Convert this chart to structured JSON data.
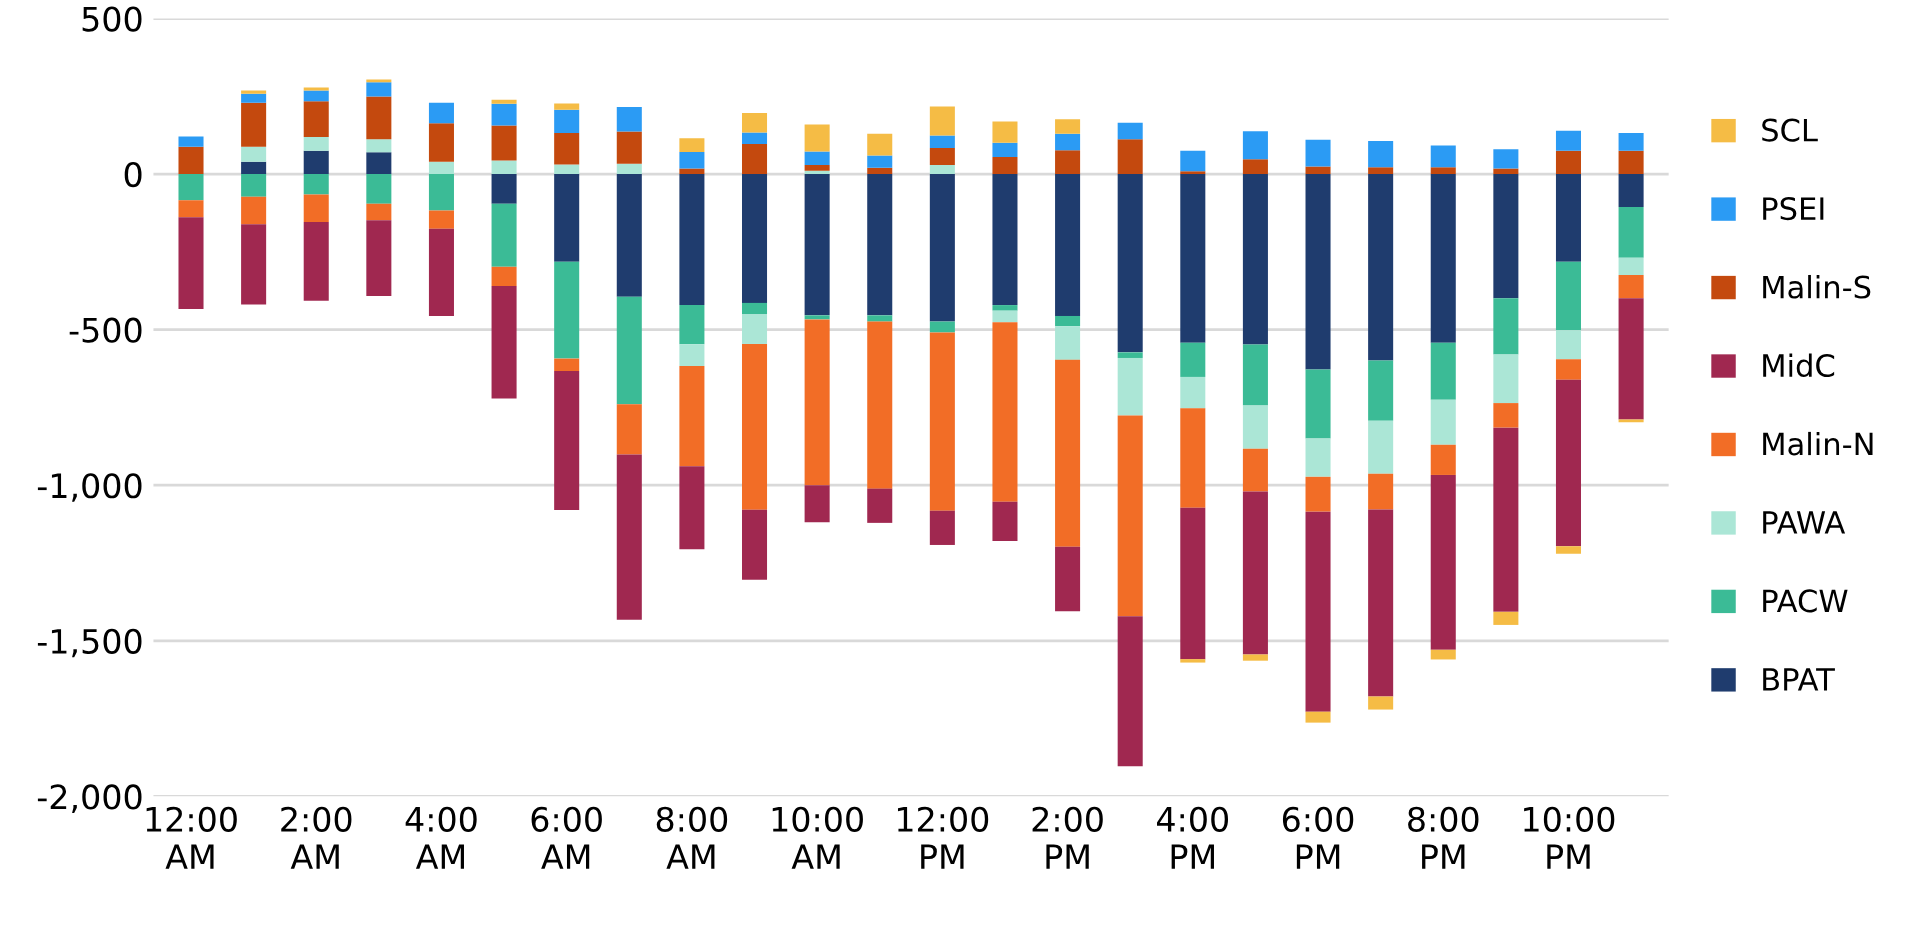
{
  "chart_data": {
    "type": "bar",
    "stacked": true,
    "categories": [
      "12:00 AM",
      null,
      "2:00 AM",
      null,
      "4:00 AM",
      null,
      "6:00 AM",
      null,
      "8:00 AM",
      null,
      "10:00 AM",
      null,
      "12:00 PM",
      null,
      "2:00 PM",
      null,
      "4:00 PM",
      null,
      "6:00 PM",
      null,
      "8:00 PM",
      null,
      "10:00 PM",
      null
    ],
    "series": [
      {
        "name": "BPAT",
        "color": "#1f3c6e",
        "values": [
          0,
          40,
          75,
          70,
          0,
          -95,
          -282,
          -394,
          -421,
          -414,
          -454,
          -454,
          -474,
          -421,
          -456,
          -573,
          -542,
          -548,
          -628,
          -599,
          -542,
          -399,
          -282,
          -106
        ]
      },
      {
        "name": "PACW",
        "color": "#3bbb96",
        "values": [
          -84,
          -73,
          -66,
          -95,
          -117,
          -203,
          -311,
          -346,
          -126,
          -37,
          -13,
          -20,
          -35,
          -18,
          -33,
          -18,
          -110,
          -196,
          -222,
          -194,
          -183,
          -181,
          -220,
          -163
        ]
      },
      {
        "name": "PAWA",
        "color": "#abe6d6",
        "values": [
          null,
          48,
          44,
          42,
          40,
          44,
          31,
          33,
          -70,
          -95,
          11,
          0,
          29,
          -37,
          -108,
          -185,
          -101,
          -139,
          -123,
          -170,
          -145,
          -156,
          -93,
          -55
        ]
      },
      {
        "name": "Malin-N",
        "color": "#f26d26",
        "values": [
          -55,
          -88,
          -88,
          -53,
          -59,
          -62,
          -40,
          -161,
          -322,
          -533,
          -533,
          -537,
          -573,
          -577,
          -601,
          -645,
          -319,
          -137,
          -112,
          -115,
          -97,
          -79,
          -66,
          -75
        ]
      },
      {
        "name": "MidC",
        "color": "#a02850",
        "values": [
          -295,
          -258,
          -253,
          -244,
          -280,
          -361,
          -447,
          -531,
          -267,
          -225,
          -119,
          -110,
          -110,
          -126,
          -207,
          -482,
          -487,
          -524,
          -643,
          -601,
          -562,
          -592,
          -535,
          -390
        ]
      },
      {
        "name": "Malin-S",
        "color": "#c4490e",
        "values": [
          88,
          141,
          115,
          137,
          123,
          112,
          101,
          104,
          18,
          97,
          18,
          20,
          55,
          55,
          77,
          112,
          9,
          48,
          24,
          22,
          22,
          18,
          75,
          75
        ]
      },
      {
        "name": "PSEI",
        "color": "#2b9bf4",
        "values": [
          33,
          29,
          35,
          46,
          66,
          70,
          75,
          79,
          53,
          37,
          44,
          40,
          40,
          46,
          53,
          53,
          66,
          90,
          86,
          84,
          70,
          62,
          64,
          57
        ]
      },
      {
        "name": "SCL",
        "color": "#f5bc45",
        "values": [
          0,
          11,
          9,
          9,
          0,
          13,
          20,
          0,
          44,
          62,
          86,
          70,
          93,
          68,
          46,
          0,
          -11,
          -20,
          -35,
          -42,
          -31,
          -42,
          -24,
          -9
        ]
      }
    ],
    "ylim": [
      -2000,
      500
    ],
    "yticks": [
      {
        "value": -2000,
        "label": "-2,000"
      },
      {
        "value": -1500,
        "label": "-1,500"
      },
      {
        "value": -1000,
        "label": "-1,000"
      },
      -500,
      0,
      500
    ],
    "grid": "y",
    "legend": "right"
  }
}
